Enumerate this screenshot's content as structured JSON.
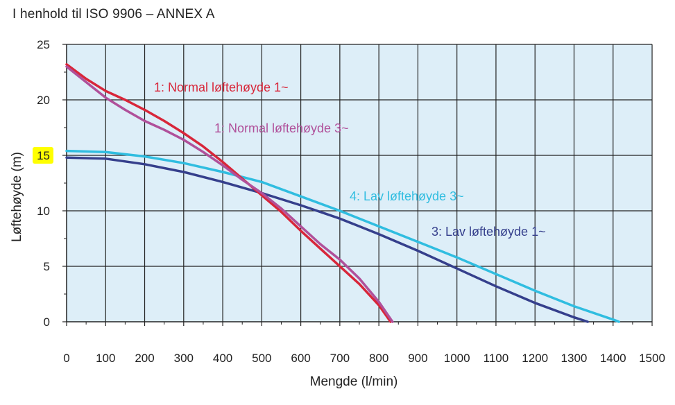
{
  "chart_data": {
    "type": "line",
    "title": "I henhold til ISO 9906 – ANNEX A",
    "xlabel": "Mengde (l/min)",
    "ylabel": "Løftehøyde (m)",
    "xlim": [
      0,
      1500
    ],
    "ylim": [
      0,
      25
    ],
    "x_ticks": [
      0,
      100,
      200,
      300,
      400,
      500,
      600,
      700,
      800,
      900,
      1000,
      1100,
      1200,
      1300,
      1400,
      1500
    ],
    "y_ticks": [
      0,
      5,
      10,
      15,
      20,
      25
    ],
    "highlighted_y_tick": 15,
    "highlight_color": "#ffff00",
    "grid": true,
    "plot_background": "#ddeef8",
    "legend": "inline labels",
    "series": [
      {
        "name": "1: Normal løftehøyde 1~",
        "color": "#d8263a",
        "x": [
          0,
          50,
          100,
          150,
          200,
          250,
          300,
          350,
          400,
          450,
          500,
          550,
          600,
          650,
          700,
          750,
          800,
          830
        ],
        "y": [
          23.2,
          21.9,
          20.8,
          20.0,
          19.1,
          18.1,
          17.0,
          15.8,
          14.4,
          12.9,
          11.4,
          9.9,
          8.2,
          6.6,
          5.0,
          3.4,
          1.5,
          0.0
        ]
      },
      {
        "name": "1: Normal løftehøyde 3~",
        "color": "#b0509a",
        "x": [
          0,
          50,
          100,
          150,
          200,
          250,
          300,
          350,
          400,
          450,
          500,
          550,
          600,
          650,
          700,
          750,
          800,
          835
        ],
        "y": [
          23.0,
          21.6,
          20.2,
          19.1,
          18.1,
          17.3,
          16.4,
          15.3,
          14.1,
          12.8,
          11.6,
          10.2,
          8.6,
          7.0,
          5.6,
          3.9,
          1.8,
          0.0
        ]
      },
      {
        "name": "3: Lav løftehøyde 1~",
        "color": "#353f8c",
        "x": [
          0,
          100,
          200,
          300,
          400,
          500,
          600,
          700,
          800,
          900,
          1000,
          1100,
          1200,
          1300,
          1335
        ],
        "y": [
          14.8,
          14.7,
          14.2,
          13.5,
          12.6,
          11.6,
          10.5,
          9.3,
          7.9,
          6.4,
          4.8,
          3.2,
          1.7,
          0.4,
          0.0
        ]
      },
      {
        "name": "4: Lav løftehøyde 3~",
        "color": "#30bde0",
        "x": [
          0,
          100,
          200,
          300,
          400,
          500,
          600,
          700,
          800,
          900,
          1000,
          1100,
          1200,
          1300,
          1400,
          1415
        ],
        "y": [
          15.4,
          15.3,
          14.9,
          14.3,
          13.5,
          12.6,
          11.3,
          10.0,
          8.6,
          7.2,
          5.8,
          4.3,
          2.8,
          1.4,
          0.2,
          0.0
        ]
      }
    ]
  }
}
